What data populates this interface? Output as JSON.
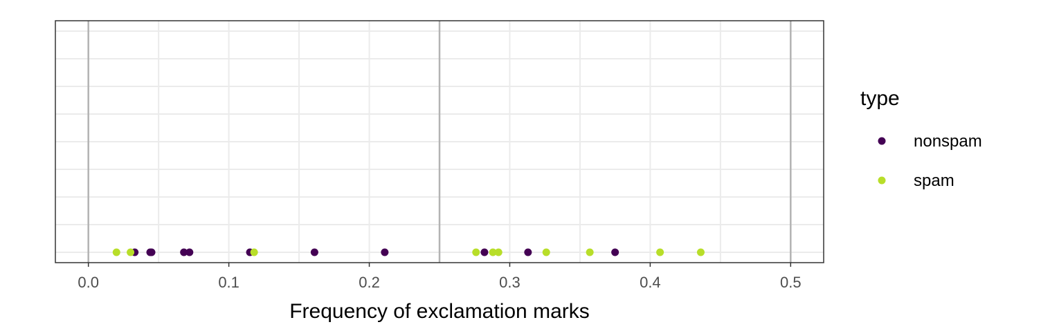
{
  "chart_data": {
    "type": "scatter",
    "title": "",
    "xlabel": "Frequency of exclamation marks",
    "ylabel": "",
    "xlim": [
      -0.0235,
      0.5235
    ],
    "x_ticks": [
      "0.0",
      "0.1",
      "0.2",
      "0.3",
      "0.4",
      "0.5"
    ],
    "x_tick_values": [
      0.0,
      0.1,
      0.2,
      0.3,
      0.4,
      0.5
    ],
    "x_major_lines": [
      0.0,
      0.25,
      0.5
    ],
    "legend_title": "type",
    "legend_position": "right",
    "grid": true,
    "series": [
      {
        "name": "nonspam",
        "color": "#440154",
        "x": [
          0.033,
          0.044,
          0.045,
          0.068,
          0.072,
          0.115,
          0.161,
          0.211,
          0.282,
          0.313,
          0.375
        ]
      },
      {
        "name": "spam",
        "color": "#b8de29",
        "x": [
          0.02,
          0.03,
          0.118,
          0.276,
          0.288,
          0.292,
          0.326,
          0.357,
          0.407,
          0.436
        ]
      }
    ]
  }
}
